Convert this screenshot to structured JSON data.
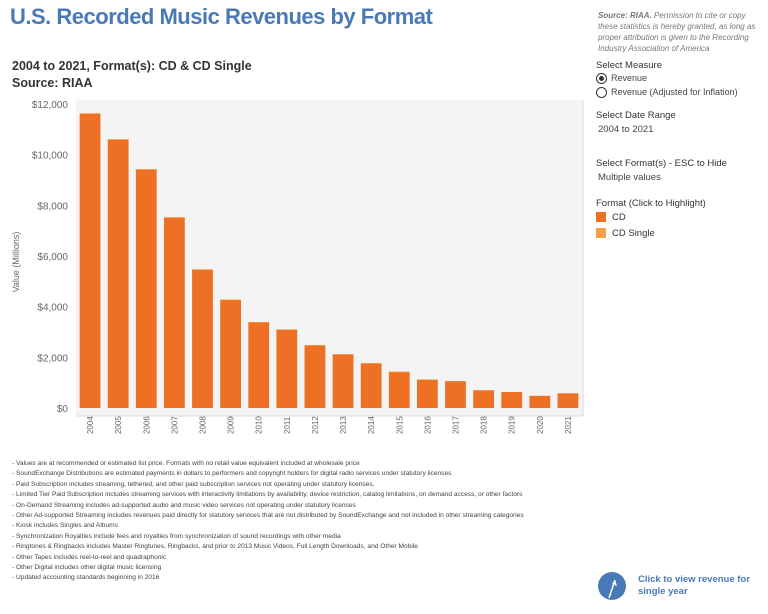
{
  "header": {
    "title": "U.S. Recorded Music Revenues by Format",
    "subtitle_line1": "2004 to 2021, Format(s): CD & CD Single",
    "subtitle_line2": "Source: RIAA",
    "source_note_bold": "Source: RIAA.",
    "source_note_rest": " Permission to cite or copy these statistics is hereby granted, as long as proper attribution is given to the Recording Industry Association of America"
  },
  "controls": {
    "measure_label": "Select Measure",
    "measure_options": [
      "Revenue",
      "Revenue (Adjusted for Inflation)"
    ],
    "measure_selected": 0,
    "date_range_label": "Select Date Range",
    "date_range_value": "2004 to 2021",
    "format_label": "Select Format(s) - ESC to Hide",
    "format_value": "Multiple values",
    "legend_title": "Format (Click to Highlight)",
    "legend_items": [
      {
        "label": "CD",
        "color": "#ee7024"
      },
      {
        "label": "CD Single",
        "color": "#f5a04a"
      }
    ]
  },
  "notes": [
    "- Values are at recommended or estimated list price. Formats with no retail value equivalent included at wholesale price",
    "- SoundExchange Distributions are estimated payments in dollars to performers and copyright holders for digital radio services under statutory licenses",
    "- Paid Subscription includes streaming, tethered, and other paid subscription services not operating under statutory licenses.",
    "- Limited Tier Paid Subscription includes streaming services with interactivity limitations by availability, device restriction, catalog limitations, on demand access, or other factors",
    "- On-Demand Streaming includes ad-supported audio and music video services not operating under statutory licenses",
    "- Other Ad-supported Streaming includes revenues paid directly for statutory services that are not distributed by SoundExchange and not included in other streaming categories",
    "- Kiosk includes Singles and Albums",
    "- Synchronization Royalties include fees and royalties from synchronization of sound recordings with other media",
    "- Ringtones & Ringbacks includes Master Ringtunes, Ringbacks, and prior to 2013 Music Videos, Full Length Downloads, and Other Mobile",
    "- Other Tapes includes reel-to-reel and quadraphonic",
    "- Other Digital includes other digital music licensing",
    "- Updated accounting standards beginning in 2016"
  ],
  "footer_button": {
    "line1": "Click to view revenue for",
    "line2": "single year"
  },
  "chart_data": {
    "type": "bar",
    "ylabel": "Value (Millions)",
    "ylim": [
      0,
      12000
    ],
    "yticks": [
      "$0",
      "$2,000",
      "$4,000",
      "$6,000",
      "$8,000",
      "$10,000",
      "$12,000"
    ],
    "ytick_values": [
      0,
      2000,
      4000,
      6000,
      8000,
      10000,
      12000
    ],
    "categories": [
      "2004",
      "2005",
      "2006",
      "2007",
      "2008",
      "2009",
      "2010",
      "2011",
      "2012",
      "2013",
      "2014",
      "2015",
      "2016",
      "2017",
      "2018",
      "2019",
      "2020",
      "2021"
    ],
    "series": [
      {
        "name": "CD",
        "color": "#ee7024",
        "values": [
          11620,
          10600,
          9420,
          7520,
          5470,
          4280,
          3390,
          3100,
          2480,
          2120,
          1770,
          1430,
          1120,
          1060,
          700,
          630,
          480,
          580
        ]
      },
      {
        "name": "CD Single",
        "color": "#f5a04a",
        "values": [
          15,
          10,
          7,
          12,
          3,
          3,
          3,
          2,
          2,
          1,
          1,
          1,
          0,
          0,
          0,
          0,
          0,
          0
        ]
      }
    ],
    "grid": false,
    "legend_placement": "right"
  }
}
